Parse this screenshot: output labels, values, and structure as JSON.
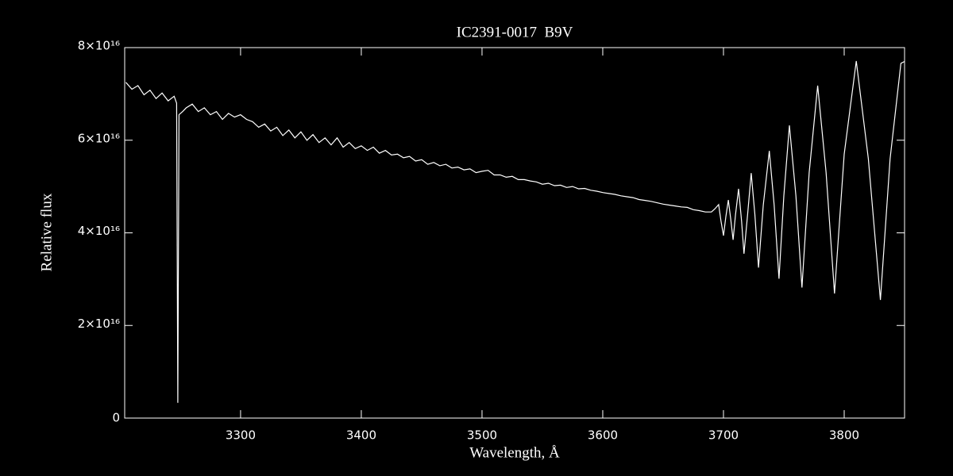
{
  "chart_data": {
    "type": "line",
    "title": "IC2391-0017  B9V",
    "x_label": "Wavelength, Å",
    "y_label": "Relative flux",
    "color": "#ffffff",
    "xlim": [
      3204,
      3850
    ],
    "ylim": [
      0,
      8e+16
    ],
    "xticks": [
      3300,
      3400,
      3500,
      3600,
      3700,
      3800
    ],
    "yticks": [
      0,
      {
        "value": 2e+16,
        "label": "2×10¹⁶"
      },
      {
        "value": 4e+16,
        "label": "4×10¹⁶"
      },
      {
        "value": 6e+16,
        "label": "6×10¹⁶"
      },
      {
        "value": 8e+16,
        "label": "8×10¹⁶"
      }
    ],
    "x": [
      3205,
      3210,
      3215,
      3220,
      3225,
      3230,
      3235,
      3240,
      3245,
      3247,
      3248,
      3249,
      3252,
      3255,
      3260,
      3265,
      3270,
      3275,
      3280,
      3285,
      3290,
      3295,
      3300,
      3305,
      3310,
      3315,
      3320,
      3325,
      3330,
      3335,
      3340,
      3345,
      3350,
      3355,
      3360,
      3365,
      3370,
      3375,
      3380,
      3385,
      3390,
      3395,
      3400,
      3405,
      3410,
      3415,
      3420,
      3425,
      3430,
      3435,
      3440,
      3445,
      3450,
      3455,
      3460,
      3465,
      3470,
      3475,
      3480,
      3485,
      3490,
      3495,
      3500,
      3505,
      3510,
      3515,
      3520,
      3525,
      3530,
      3535,
      3540,
      3545,
      3550,
      3555,
      3560,
      3565,
      3570,
      3575,
      3580,
      3585,
      3590,
      3595,
      3600,
      3605,
      3610,
      3615,
      3620,
      3625,
      3630,
      3635,
      3640,
      3645,
      3650,
      3655,
      3660,
      3665,
      3670,
      3675,
      3680,
      3685,
      3690,
      3693,
      3696,
      3698,
      3700,
      3702,
      3704,
      3706,
      3708,
      3710,
      3712.5,
      3715,
      3717,
      3720,
      3723,
      3726,
      3729,
      3733,
      3738,
      3742,
      3746,
      3750,
      3754.6,
      3760,
      3765,
      3771,
      3778,
      3785,
      3792,
      3800,
      3810,
      3820,
      3830,
      3838,
      3847,
      3850
    ],
    "values": [
      7.25e+16,
      7.1e+16,
      7.18e+16,
      6.98e+16,
      7.08e+16,
      6.9e+16,
      7.02e+16,
      6.85e+16,
      6.95e+16,
      6.8e+16,
      3300000000000000.0,
      6.55e+16,
      6.62e+16,
      6.7e+16,
      6.78e+16,
      6.62e+16,
      6.7e+16,
      6.55e+16,
      6.62e+16,
      6.45e+16,
      6.58e+16,
      6.5e+16,
      6.55e+16,
      6.45e+16,
      6.4e+16,
      6.28e+16,
      6.35e+16,
      6.2e+16,
      6.28e+16,
      6.1e+16,
      6.22e+16,
      6.05e+16,
      6.18e+16,
      6e+16,
      6.12e+16,
      5.95e+16,
      6.05e+16,
      5.9e+16,
      6.05e+16,
      5.85e+16,
      5.95e+16,
      5.82e+16,
      5.88e+16,
      5.78e+16,
      5.85e+16,
      5.72e+16,
      5.78e+16,
      5.68e+16,
      5.7e+16,
      5.62e+16,
      5.65e+16,
      5.55e+16,
      5.58e+16,
      5.48e+16,
      5.52e+16,
      5.45e+16,
      5.48e+16,
      5.4e+16,
      5.42e+16,
      5.36e+16,
      5.38e+16,
      5.3e+16,
      5.33e+16,
      5.35e+16,
      5.25e+16,
      5.25e+16,
      5.2e+16,
      5.22e+16,
      5.15e+16,
      5.15e+16,
      5.12e+16,
      5.1e+16,
      5.05e+16,
      5.07e+16,
      5.02e+16,
      5.03e+16,
      4.98e+16,
      5e+16,
      4.95e+16,
      4.96e+16,
      4.92e+16,
      4.9e+16,
      4.87e+16,
      4.85e+16,
      4.83e+16,
      4.8e+16,
      4.78e+16,
      4.76e+16,
      4.72e+16,
      4.7e+16,
      4.68e+16,
      4.65e+16,
      4.62e+16,
      4.6e+16,
      4.58e+16,
      4.56e+16,
      4.55e+16,
      4.5e+16,
      4.48e+16,
      4.45e+16,
      4.45e+16,
      4.52e+16,
      4.61e+16,
      4.25e+16,
      3.94e+16,
      4.35e+16,
      4.71e+16,
      4.3e+16,
      3.85e+16,
      4.4e+16,
      4.95e+16,
      4.25e+16,
      3.55e+16,
      4.4e+16,
      5.29e+16,
      4.4e+16,
      3.25e+16,
      4.6e+16,
      5.77e+16,
      4.6e+16,
      3.01e+16,
      4.8e+16,
      6.32e+16,
      4.8e+16,
      2.82e+16,
      5.3e+16,
      7.18e+16,
      5.3e+16,
      2.69e+16,
      5.7e+16,
      7.71e+16,
      5.6e+16,
      2.55e+16,
      5.6e+16,
      7.66e+16,
      7.7e+16
    ]
  }
}
